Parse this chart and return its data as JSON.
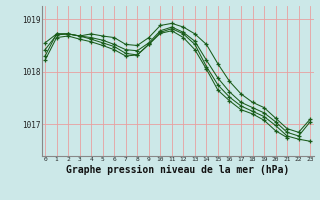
{
  "background_color": "#cce8e8",
  "grid_color": "#e8a0a0",
  "line_color": "#1a5c1a",
  "ylabel_values": [
    1017,
    1018,
    1019
  ],
  "xlim": [
    -0.3,
    23.3
  ],
  "ylim": [
    1016.4,
    1019.25
  ],
  "xlabel": "Graphe pression niveau de la mer (hPa)",
  "xlabel_fontsize": 7,
  "xtick_labels": [
    "0",
    "1",
    "2",
    "3",
    "4",
    "5",
    "6",
    "7",
    "8",
    "9",
    "10",
    "11",
    "12",
    "13",
    "14",
    "15",
    "16",
    "17",
    "18",
    "19",
    "20",
    "21",
    "22",
    "23"
  ],
  "line1_x": [
    0,
    1,
    2,
    3,
    4,
    5,
    6,
    7,
    8,
    9,
    10,
    11,
    12,
    13,
    14,
    15,
    16,
    17,
    18,
    19,
    20,
    21,
    22,
    23
  ],
  "line1_y": [
    1018.55,
    1018.72,
    1018.72,
    1018.68,
    1018.72,
    1018.68,
    1018.65,
    1018.52,
    1018.5,
    1018.65,
    1018.88,
    1018.92,
    1018.85,
    1018.72,
    1018.52,
    1018.15,
    1017.82,
    1017.58,
    1017.42,
    1017.32,
    1017.12,
    1016.92,
    1016.85,
    1017.1
  ],
  "line2_x": [
    0,
    1,
    2,
    3,
    4,
    5,
    6,
    7,
    8,
    9,
    10,
    11,
    12,
    13,
    14,
    15,
    16,
    17,
    18,
    19,
    20,
    21,
    22,
    23
  ],
  "line2_y": [
    1018.42,
    1018.7,
    1018.72,
    1018.68,
    1018.65,
    1018.6,
    1018.52,
    1018.42,
    1018.4,
    1018.55,
    1018.78,
    1018.85,
    1018.75,
    1018.58,
    1018.22,
    1017.88,
    1017.62,
    1017.42,
    1017.32,
    1017.22,
    1017.05,
    1016.85,
    1016.78,
    1017.05
  ],
  "line3_x": [
    0,
    1,
    2,
    3,
    4,
    5,
    6,
    7,
    8,
    9,
    10,
    11,
    12,
    13,
    14,
    15,
    16,
    17,
    18,
    19,
    20,
    21,
    22,
    23
  ],
  "line3_y": [
    1018.3,
    1018.72,
    1018.72,
    1018.68,
    1018.62,
    1018.55,
    1018.48,
    1018.35,
    1018.32,
    1018.52,
    1018.75,
    1018.82,
    1018.72,
    1018.52,
    1018.1,
    1017.75,
    1017.52,
    1017.35,
    1017.25,
    1017.15,
    1016.98,
    1016.78,
    1016.72,
    1016.68
  ],
  "line4_x": [
    0,
    1,
    2,
    3,
    4,
    5,
    6,
    7,
    8,
    9,
    10,
    11,
    12,
    13,
    14,
    15,
    16,
    17,
    18,
    19,
    20,
    21
  ],
  "line4_y": [
    1018.22,
    1018.65,
    1018.68,
    1018.62,
    1018.57,
    1018.5,
    1018.42,
    1018.3,
    1018.32,
    1018.52,
    1018.73,
    1018.78,
    1018.65,
    1018.42,
    1018.05,
    1017.65,
    1017.45,
    1017.28,
    1017.2,
    1017.08,
    1016.88,
    1016.75
  ]
}
